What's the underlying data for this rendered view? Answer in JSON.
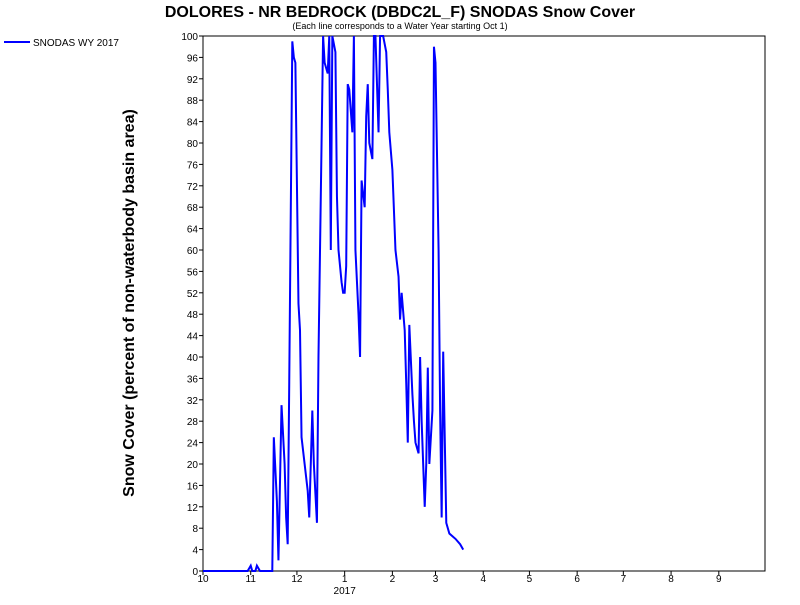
{
  "chart_data": {
    "type": "line",
    "title": "DOLORES - NR BEDROCK (DBDC2L_F) SNODAS Snow Cover",
    "subtitle": "(Each line corresponds to a Water Year starting Oct 1)",
    "y_label": "Snow Cover (percent of non-waterbody basin area)",
    "x_annotation": "2017",
    "legend_position": "top-left",
    "grid": false,
    "xlim": [
      0,
      365
    ],
    "ylim": [
      0,
      100
    ],
    "xticks": [
      {
        "value": 0,
        "label": "10"
      },
      {
        "value": 31,
        "label": "11"
      },
      {
        "value": 61,
        "label": "12"
      },
      {
        "value": 92,
        "label": "1"
      },
      {
        "value": 123,
        "label": "2"
      },
      {
        "value": 151,
        "label": "3"
      },
      {
        "value": 182,
        "label": "4"
      },
      {
        "value": 212,
        "label": "5"
      },
      {
        "value": 243,
        "label": "6"
      },
      {
        "value": 273,
        "label": "7"
      },
      {
        "value": 304,
        "label": "8"
      },
      {
        "value": 335,
        "label": "9"
      }
    ],
    "yticks": [
      0,
      4,
      8,
      12,
      16,
      20,
      24,
      28,
      32,
      36,
      40,
      44,
      48,
      52,
      56,
      60,
      64,
      68,
      72,
      76,
      80,
      84,
      88,
      92,
      96,
      100
    ],
    "x": [
      0,
      29,
      31,
      32,
      34,
      35,
      37,
      45,
      46,
      48,
      49,
      51,
      53,
      54,
      55,
      56,
      58,
      59,
      60,
      62,
      63,
      64,
      66,
      68,
      69,
      71,
      72,
      74,
      75,
      77,
      78,
      79,
      81,
      82,
      83,
      84,
      86,
      87,
      88,
      90,
      91,
      92,
      93,
      94,
      95,
      97,
      98,
      99,
      101,
      102,
      103,
      105,
      106,
      107,
      108,
      110,
      111,
      112,
      114,
      115,
      117,
      119,
      120,
      121,
      123,
      125,
      127,
      128,
      129,
      131,
      132,
      133,
      134,
      136,
      137,
      138,
      140,
      141,
      142,
      144,
      145,
      146,
      147,
      149,
      150,
      151,
      153,
      154,
      155,
      156,
      157,
      158,
      160,
      164,
      167,
      169
    ],
    "series": [
      {
        "name": "SNODAS WY 2017",
        "color": "#0000ff",
        "values": [
          0,
          0,
          1,
          0,
          0,
          1,
          0,
          0,
          25,
          13,
          2,
          31,
          20,
          10,
          5,
          35,
          99,
          96,
          95,
          50,
          45,
          25,
          20,
          15,
          10,
          30,
          20,
          9,
          40,
          80,
          100,
          95,
          93,
          100,
          60,
          100,
          97,
          70,
          60,
          54,
          52,
          52,
          57,
          91,
          90,
          82,
          100,
          60,
          48,
          40,
          73,
          68,
          85,
          91,
          80,
          77,
          100,
          100,
          82,
          100,
          100,
          97,
          90,
          82,
          75,
          60,
          55,
          47,
          52,
          45,
          35,
          24,
          46,
          33,
          28,
          24,
          22,
          40,
          28,
          12,
          20,
          38,
          20,
          30,
          98,
          95,
          60,
          30,
          10,
          41,
          25,
          9,
          7,
          6,
          5,
          4
        ]
      }
    ]
  }
}
